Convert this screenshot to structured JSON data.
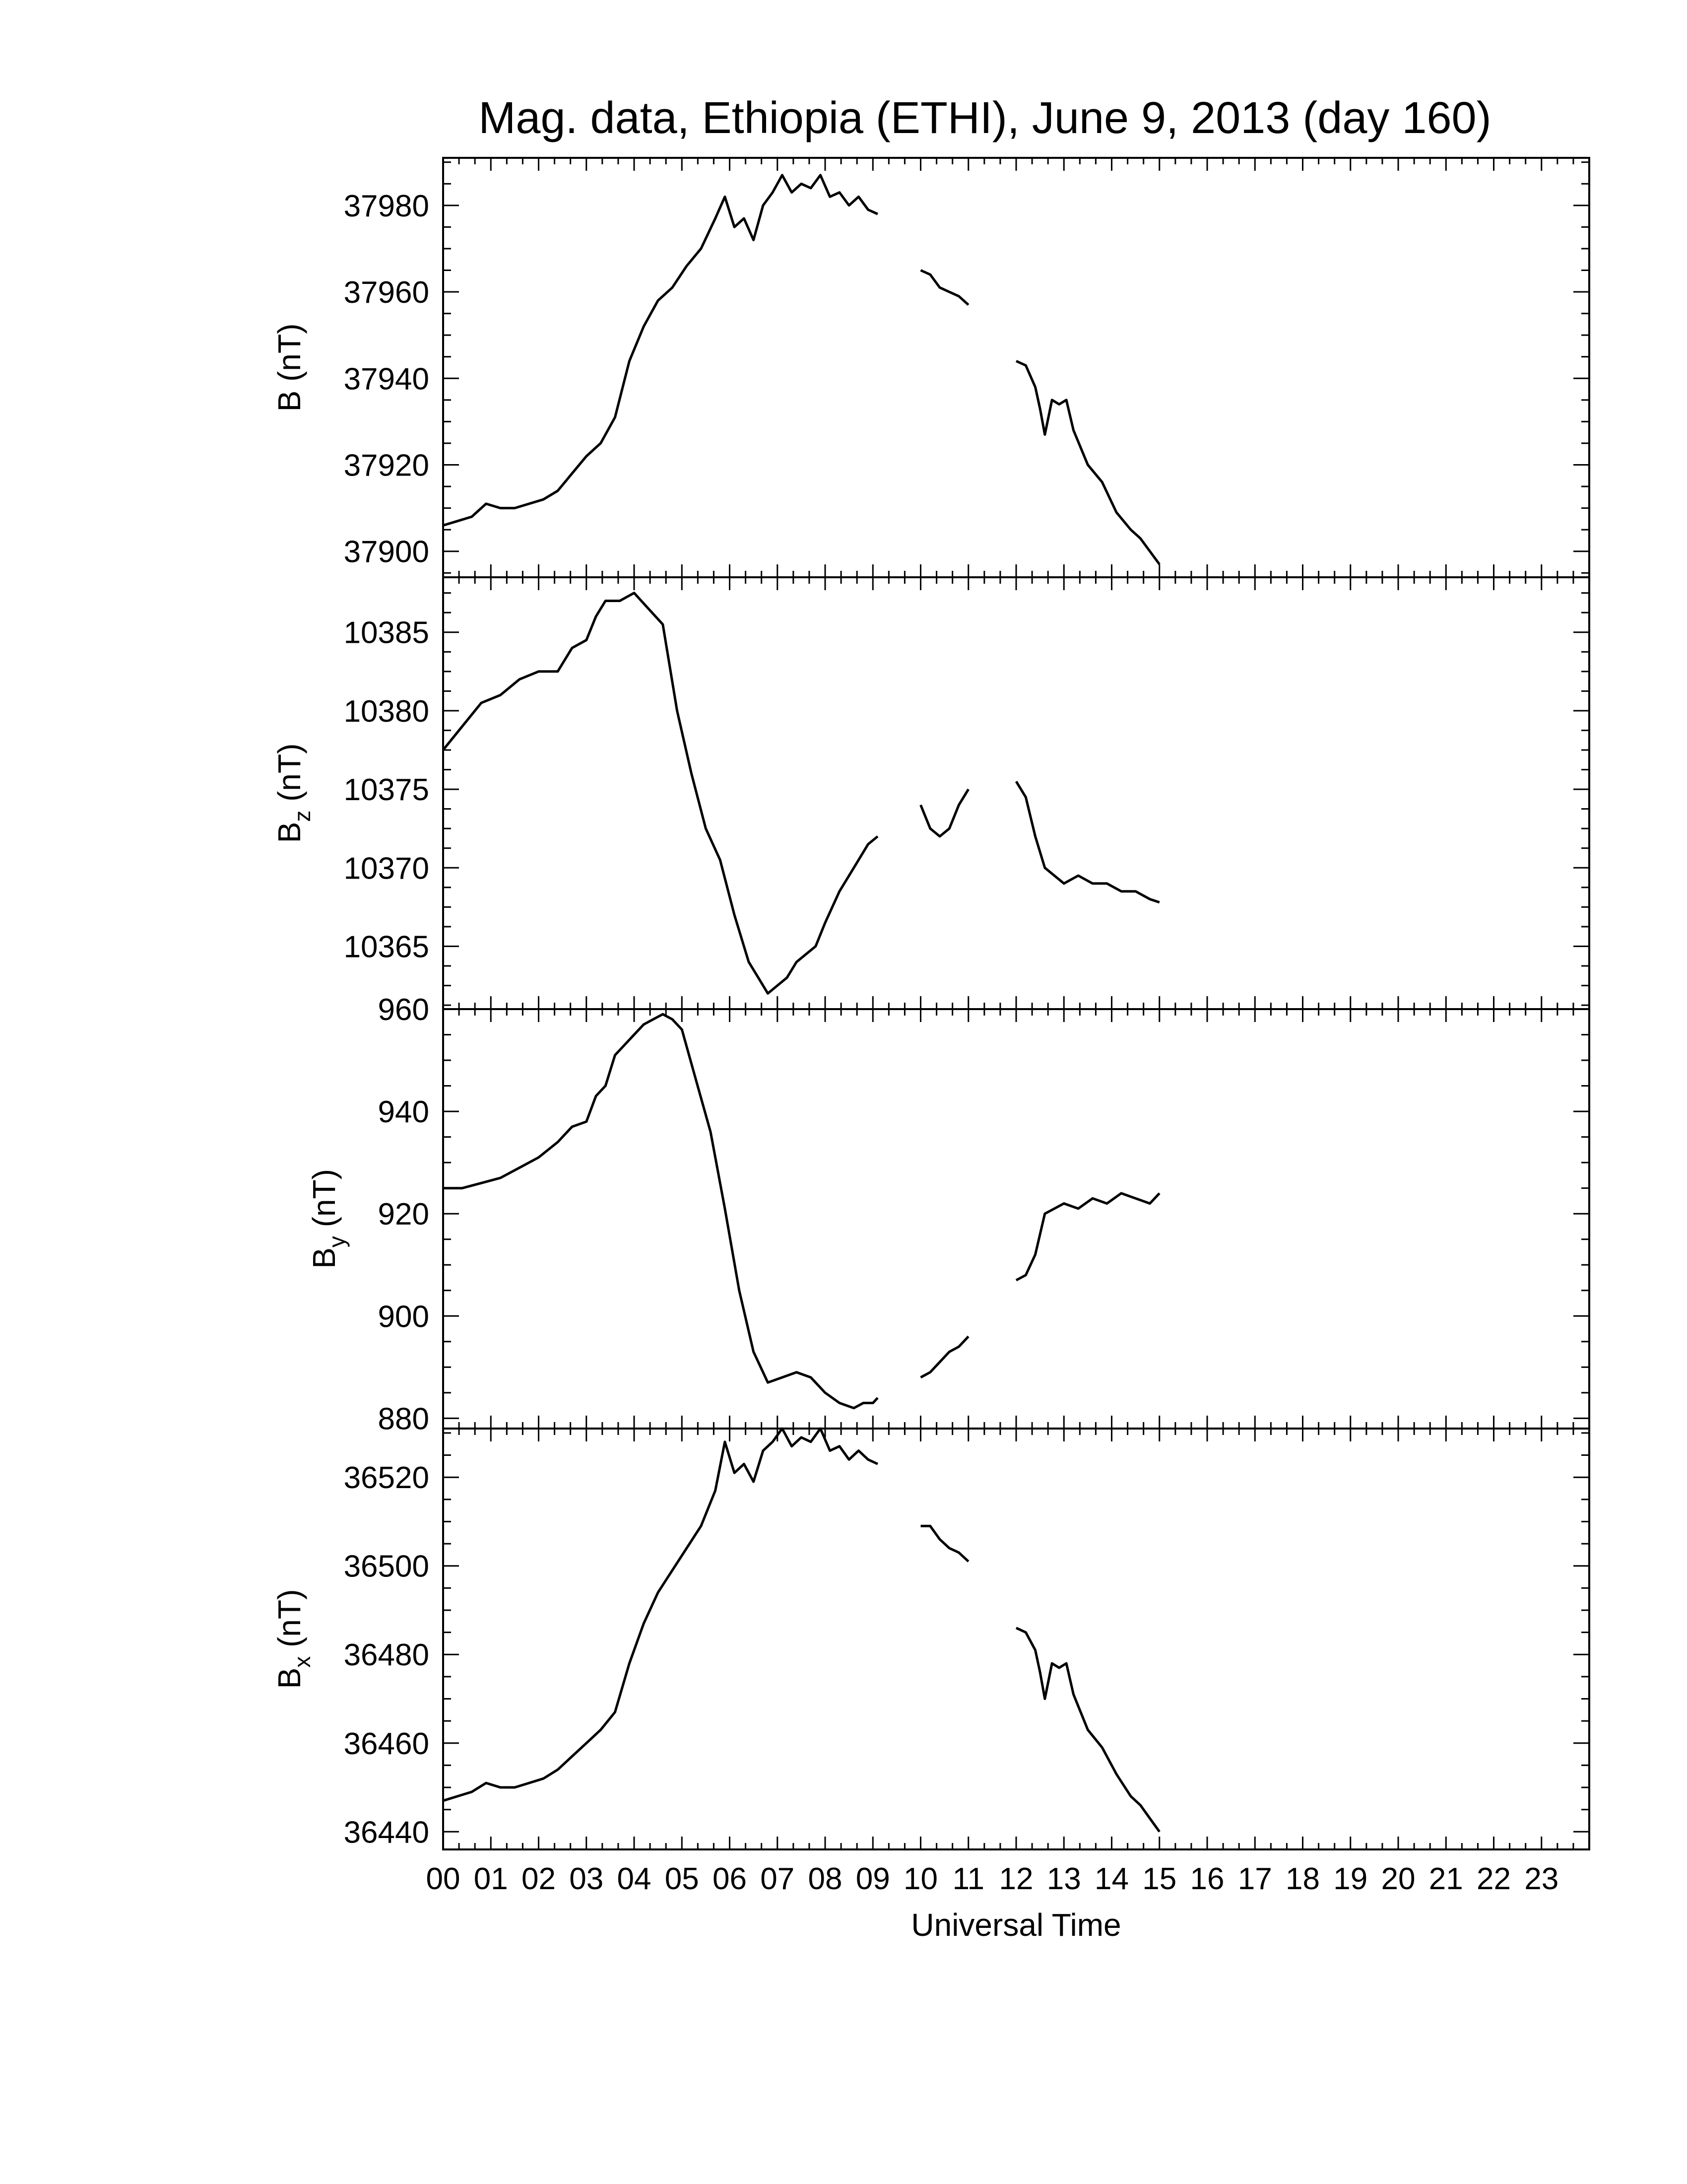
{
  "chart_data": {
    "type": "line",
    "title": "Mag. data, Ethiopia (ETHI), June 9, 2013 (day 160)",
    "xlabel": "Universal Time",
    "xlim": [
      0,
      24
    ],
    "x_tick_labels": [
      "00",
      "01",
      "02",
      "03",
      "04",
      "05",
      "06",
      "07",
      "08",
      "09",
      "10",
      "11",
      "12",
      "13",
      "14",
      "15",
      "16",
      "17",
      "18",
      "19",
      "20",
      "21",
      "22",
      "23"
    ],
    "panels": [
      {
        "id": "B",
        "ylabel": "B (nT)",
        "ylabel_main": "B",
        "ylabel_sub": "",
        "ylabel_unit": " (nT)",
        "ylim": [
          37894,
          37991
        ],
        "yticks": [
          37900,
          37920,
          37940,
          37960,
          37980
        ],
        "segments": [
          {
            "x": [
              0,
              0.3,
              0.6,
              0.9,
              1.2,
              1.5,
              1.8,
              2.1,
              2.4,
              2.7,
              3.0,
              3.3,
              3.6,
              3.9,
              4.2,
              4.5,
              4.8,
              5.1,
              5.4,
              5.7,
              5.9,
              6.1,
              6.3,
              6.5,
              6.7,
              6.9,
              7.1,
              7.3,
              7.5,
              7.7,
              7.9,
              8.1,
              8.3,
              8.5,
              8.7,
              8.9,
              9.1
            ],
            "y": [
              37906,
              37907,
              37908,
              37911,
              37910,
              37910,
              37911,
              37912,
              37914,
              37918,
              37922,
              37925,
              37931,
              37944,
              37952,
              37958,
              37961,
              37966,
              37970,
              37977,
              37982,
              37975,
              37977,
              37972,
              37980,
              37983,
              37987,
              37983,
              37985,
              37984,
              37987,
              37982,
              37983,
              37980,
              37982,
              37979,
              37978
            ]
          },
          {
            "x": [
              10.0,
              10.2,
              10.4,
              10.6,
              10.8,
              11.0
            ],
            "y": [
              37965,
              37964,
              37961,
              37960,
              37959,
              37957
            ]
          },
          {
            "x": [
              12.0,
              12.2,
              12.4,
              12.5,
              12.6,
              12.75,
              12.9,
              13.05,
              13.2,
              13.5,
              13.8,
              14.1,
              14.4,
              14.6,
              14.8,
              15.0
            ],
            "y": [
              37944,
              37943,
              37938,
              37933,
              37927,
              37935,
              37934,
              37935,
              37928,
              37920,
              37916,
              37909,
              37905,
              37903,
              37900,
              37897
            ]
          }
        ]
      },
      {
        "id": "Bz",
        "ylabel": "Bz (nT)",
        "ylabel_main": "B",
        "ylabel_sub": "z",
        "ylabel_unit": " (nT)",
        "ylim": [
          10361,
          10388.5
        ],
        "yticks": [
          10365,
          10370,
          10375,
          10380,
          10385
        ],
        "segments": [
          {
            "x": [
              0,
              0.4,
              0.8,
              1.2,
              1.6,
              2.0,
              2.4,
              2.7,
              3.0,
              3.2,
              3.4,
              3.7,
              4.0,
              4.3,
              4.6,
              4.9,
              5.2,
              5.5,
              5.8,
              6.1,
              6.4,
              6.6,
              6.8,
              7.0,
              7.2,
              7.4,
              7.6,
              7.8,
              8.0,
              8.3,
              8.6,
              8.9,
              9.1
            ],
            "y": [
              10377.5,
              10379.0,
              10380.5,
              10381.0,
              10382.0,
              10382.5,
              10382.5,
              10384.0,
              10384.5,
              10386.0,
              10387.0,
              10387.0,
              10387.5,
              10386.5,
              10385.5,
              10380.0,
              10376.0,
              10372.5,
              10370.5,
              10367.0,
              10364.0,
              10363.0,
              10362.0,
              10362.5,
              10363.0,
              10364.0,
              10364.5,
              10365.0,
              10366.5,
              10368.5,
              10370.0,
              10371.5,
              10372.0
            ]
          },
          {
            "x": [
              10.0,
              10.2,
              10.4,
              10.6,
              10.8,
              11.0
            ],
            "y": [
              10374.0,
              10372.5,
              10372.0,
              10372.5,
              10374.0,
              10375.0
            ]
          },
          {
            "x": [
              12.0,
              12.2,
              12.4,
              12.6,
              12.8,
              13.0,
              13.3,
              13.6,
              13.9,
              14.2,
              14.5,
              14.8,
              15.0
            ],
            "y": [
              10375.5,
              10374.5,
              10372.0,
              10370.0,
              10369.5,
              10369.0,
              10369.5,
              10369.0,
              10369.0,
              10368.5,
              10368.5,
              10368.0,
              10367.8
            ]
          }
        ]
      },
      {
        "id": "By",
        "ylabel": "By (nT)",
        "ylabel_main": "B",
        "ylabel_sub": "y",
        "ylabel_unit": " (nT)",
        "ylim": [
          878,
          960
        ],
        "yticks": [
          880,
          900,
          920,
          940,
          960
        ],
        "segments": [
          {
            "x": [
              0,
              0.4,
              0.8,
              1.2,
              1.6,
              2.0,
              2.4,
              2.7,
              3.0,
              3.2,
              3.4,
              3.6,
              3.8,
              4.0,
              4.2,
              4.4,
              4.6,
              4.8,
              5.0,
              5.3,
              5.6,
              5.9,
              6.2,
              6.5,
              6.8,
              7.1,
              7.4,
              7.7,
              8.0,
              8.3,
              8.6,
              8.8,
              9.0,
              9.1
            ],
            "y": [
              925,
              925,
              926,
              927,
              929,
              931,
              934,
              937,
              938,
              943,
              945,
              951,
              953,
              955,
              957,
              958,
              959,
              958,
              956,
              946,
              936,
              921,
              905,
              893,
              887,
              888,
              889,
              888,
              885,
              883,
              882,
              883,
              883,
              884
            ]
          },
          {
            "x": [
              10.0,
              10.2,
              10.4,
              10.6,
              10.8,
              11.0
            ],
            "y": [
              888,
              889,
              891,
              893,
              894,
              896
            ]
          },
          {
            "x": [
              12.0,
              12.2,
              12.4,
              12.6,
              12.8,
              13.0,
              13.3,
              13.6,
              13.9,
              14.2,
              14.5,
              14.8,
              15.0
            ],
            "y": [
              907,
              908,
              912,
              920,
              921,
              922,
              921,
              923,
              922,
              924,
              923,
              922,
              924
            ]
          }
        ]
      },
      {
        "id": "Bx",
        "ylabel": "Bx (nT)",
        "ylabel_main": "B",
        "ylabel_sub": "x",
        "ylabel_unit": " (nT)",
        "ylim": [
          36436,
          36531
        ],
        "yticks": [
          36440,
          36460,
          36480,
          36500,
          36520
        ],
        "segments": [
          {
            "x": [
              0,
              0.3,
              0.6,
              0.9,
              1.2,
              1.5,
              1.8,
              2.1,
              2.4,
              2.7,
              3.0,
              3.3,
              3.6,
              3.9,
              4.2,
              4.5,
              4.8,
              5.1,
              5.4,
              5.7,
              5.9,
              6.1,
              6.3,
              6.5,
              6.7,
              6.9,
              7.1,
              7.3,
              7.5,
              7.7,
              7.9,
              8.1,
              8.3,
              8.5,
              8.7,
              8.9,
              9.1
            ],
            "y": [
              36447,
              36448,
              36449,
              36451,
              36450,
              36450,
              36451,
              36452,
              36454,
              36457,
              36460,
              36463,
              36467,
              36478,
              36487,
              36494,
              36499,
              36504,
              36509,
              36517,
              36528,
              36521,
              36523,
              36519,
              36526,
              36528,
              36531,
              36527,
              36529,
              36528,
              36531,
              36526,
              36527,
              36524,
              36526,
              36524,
              36523
            ]
          },
          {
            "x": [
              10.0,
              10.2,
              10.4,
              10.6,
              10.8,
              11.0
            ],
            "y": [
              36509,
              36509,
              36506,
              36504,
              36503,
              36501
            ]
          },
          {
            "x": [
              12.0,
              12.2,
              12.4,
              12.5,
              12.6,
              12.75,
              12.9,
              13.05,
              13.2,
              13.5,
              13.8,
              14.1,
              14.4,
              14.6,
              14.8,
              15.0
            ],
            "y": [
              36486,
              36485,
              36481,
              36476,
              36470,
              36478,
              36477,
              36478,
              36471,
              36463,
              36459,
              36453,
              36448,
              36446,
              36443,
              36440
            ]
          }
        ]
      }
    ]
  }
}
